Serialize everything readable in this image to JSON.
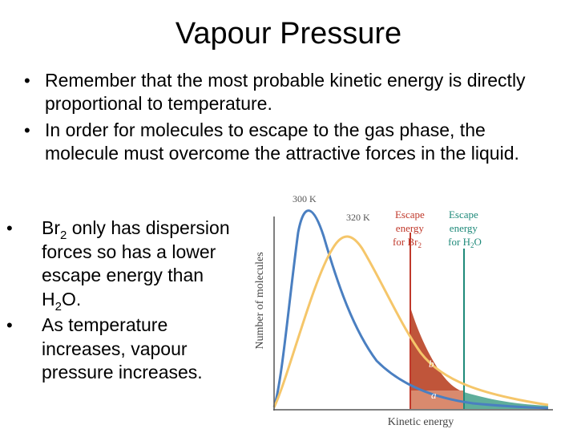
{
  "slide": {
    "title": "Vapour Pressure",
    "top_bullets": [
      "Remember that the most probable kinetic energy is directly proportional to temperature.",
      "In order for molecules to escape to the gas phase, the molecule must overcome the attractive forces in the liquid."
    ],
    "left_bullets": {
      "b1_pre": "Br",
      "b1_sub": "2",
      "b1_post": " only has dispersion forces so has a lower escape energy than H",
      "b1_sub2": "2",
      "b1_end": "O.",
      "b2": "As temperature increases, vapour pressure increases."
    }
  },
  "figure": {
    "x_axis_label": "Kinetic energy",
    "y_axis_label": "Number of molecules",
    "curve_300_label": "300 K",
    "curve_320_label": "320 K",
    "br2_line1": "Escape",
    "br2_line2": "energy",
    "br2_line3_pre": "for Br",
    "br2_line3_sub": "2",
    "h2o_line1": "Escape",
    "h2o_line2": "energy",
    "h2o_line3_pre": "for H",
    "h2o_line3_sub": "2",
    "h2o_line3_post": "O",
    "region_a": "a",
    "region_b": "b"
  },
  "colors": {
    "curve_300": "#4a7fc1",
    "curve_320": "#f5c66a",
    "br2_label": "#c0392b",
    "h2o_label": "#1f8a7a",
    "region_b": "#c0553a",
    "region_a": "#d98a6e",
    "region_teal": "#5fae9b",
    "axis": "#555555"
  }
}
